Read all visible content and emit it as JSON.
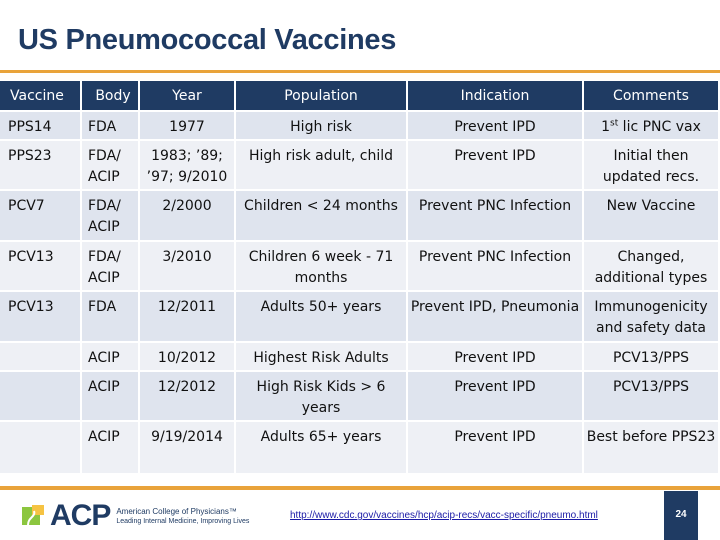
{
  "title": "US Pneumococcal Vaccines",
  "table": {
    "headers": [
      "Vaccine",
      "Body",
      "Year",
      "Population",
      "Indication",
      "Comments"
    ],
    "rows": [
      {
        "vaccine": "PPS14",
        "body": "FDA",
        "year": "1977",
        "population": "High risk",
        "indication": "Prevent IPD",
        "comment_pre": "1",
        "comment_sup": "st",
        "comment_post": " lic PNC vax"
      },
      {
        "vaccine": "PPS23",
        "body": "FDA/ ACIP",
        "year": "1983; ’89; ’97; 9/2010",
        "population": "High risk adult, child",
        "indication": "Prevent IPD",
        "comment": "Initial then updated recs."
      },
      {
        "vaccine": "PCV7",
        "body": "FDA/ ACIP",
        "year": "2/2000",
        "population": "Children < 24 months",
        "indication": "Prevent PNC Infection",
        "comment": "New Vaccine"
      },
      {
        "vaccine": "PCV13",
        "body": "FDA/ ACIP",
        "year": "3/2010",
        "population": "Children 6 week - 71 months",
        "indication": "Prevent PNC Infection",
        "comment": "Changed, additional types"
      },
      {
        "vaccine": "PCV13",
        "body": "FDA",
        "year": "12/2011",
        "population": "Adults 50+ years",
        "indication": "Prevent IPD, Pneumonia",
        "comment": "Immunogenicity and safety data"
      },
      {
        "vaccine": "",
        "body": "ACIP",
        "year": "10/2012",
        "population": "Highest Risk Adults",
        "indication": "Prevent IPD",
        "comment": "PCV13/PPS"
      },
      {
        "vaccine": "",
        "body": "ACIP",
        "year": "12/2012",
        "population": "High Risk Kids > 6 years",
        "indication": "Prevent IPD",
        "comment": "PCV13/PPS"
      },
      {
        "vaccine": "",
        "body": "ACIP",
        "year": "9/19/2014",
        "population": "Adults 65+ years",
        "indication": "Prevent IPD",
        "comment": "Best before PPS23"
      }
    ]
  },
  "footer": {
    "logo_text": "ACP",
    "logo_name": "American College of Physicians™",
    "logo_tagline": "Leading Internal Medicine, Improving Lives",
    "url": "http://www.cdc.gov/vaccines/hcp/acip-recs/vacc-specific/pneumo.html",
    "page_number": "24"
  },
  "colors": {
    "header_bg": "#1f3b63",
    "accent": "#e9a33a",
    "row_odd": "#dfe4ee",
    "row_even": "#eef0f5",
    "logo_green": "#8cc63f",
    "logo_yellow": "#f6c343"
  },
  "icons": {
    "logo_mark": "acp-caduceus-mark"
  }
}
